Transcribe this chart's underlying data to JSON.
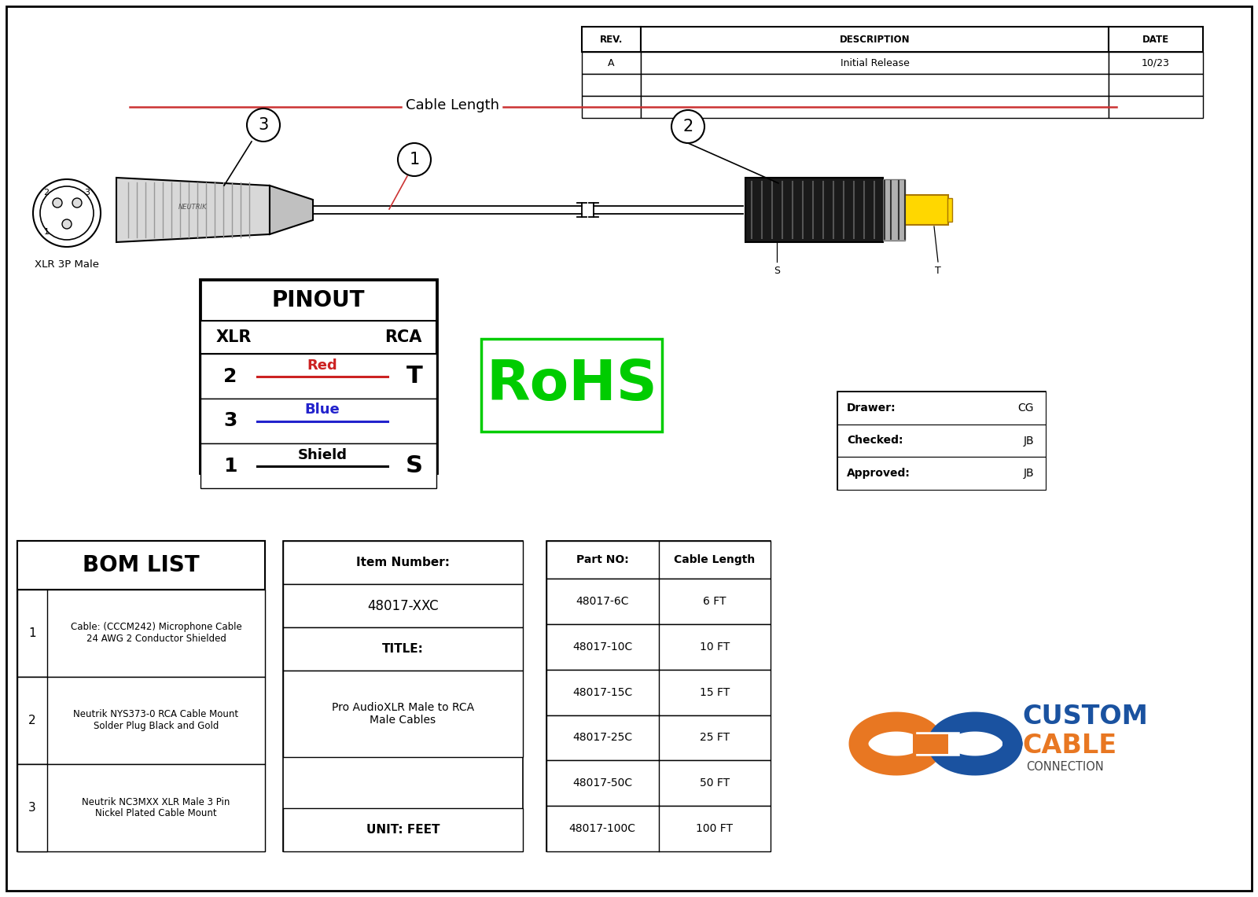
{
  "white": "#ffffff",
  "black": "#000000",
  "rev_table": {
    "headers": [
      "REV.",
      "DESCRIPTION",
      "DATE"
    ],
    "rows": [
      [
        "A",
        "Initial Release",
        "10/23"
      ],
      [
        "",
        "",
        ""
      ],
      [
        "",
        "",
        ""
      ]
    ]
  },
  "cable_length_text": "Cable Length",
  "pinout": {
    "title": "PINOUT",
    "col1": "XLR",
    "col2": "RCA",
    "rows": [
      {
        "xlr": "2",
        "label": "Red",
        "label_color": "#cc2222",
        "rca": "T"
      },
      {
        "xlr": "3",
        "label": "Blue",
        "label_color": "#2222cc",
        "rca": ""
      },
      {
        "xlr": "1",
        "label": "Shield",
        "label_color": "#000000",
        "rca": "S"
      }
    ]
  },
  "bom_list": {
    "title": "BOM LIST",
    "items": [
      {
        "num": "1",
        "desc": "Cable: (CCCM242) Microphone Cable\n24 AWG 2 Conductor Shielded"
      },
      {
        "num": "2",
        "desc": "Neutrik NYS373-0 RCA Cable Mount\nSolder Plug Black and Gold"
      },
      {
        "num": "3",
        "desc": "Neutrik NC3MXX XLR Male 3 Pin\nNickel Plated Cable Mount"
      }
    ]
  },
  "item_number": {
    "label": "Item Number:",
    "value": "48017-XXC",
    "title_label": "TITLE:",
    "title_value": "Pro AudioXLR Male to RCA\nMale Cables",
    "unit_label": "UNIT: FEET"
  },
  "part_table": {
    "headers": [
      "Part NO:",
      "Cable Length"
    ],
    "rows": [
      [
        "48017-6C",
        "6 FT"
      ],
      [
        "48017-10C",
        "10 FT"
      ],
      [
        "48017-15C",
        "15 FT"
      ],
      [
        "48017-25C",
        "25 FT"
      ],
      [
        "48017-50C",
        "50 FT"
      ],
      [
        "48017-100C",
        "100 FT"
      ]
    ]
  },
  "drawer_table": {
    "rows": [
      [
        "Drawer:",
        "CG"
      ],
      [
        "Checked:",
        "JB"
      ],
      [
        "Approved:",
        "JB"
      ]
    ]
  },
  "rohs_text": "RoHS",
  "rohs_color": "#00cc00",
  "xlr_label": "XLR 3P Male",
  "orange": "#e87722",
  "blue_logo": "#1a52a0",
  "custom_text": "CUSTOM",
  "cable_text": "CABLE",
  "connection_text": "CONNECTION"
}
